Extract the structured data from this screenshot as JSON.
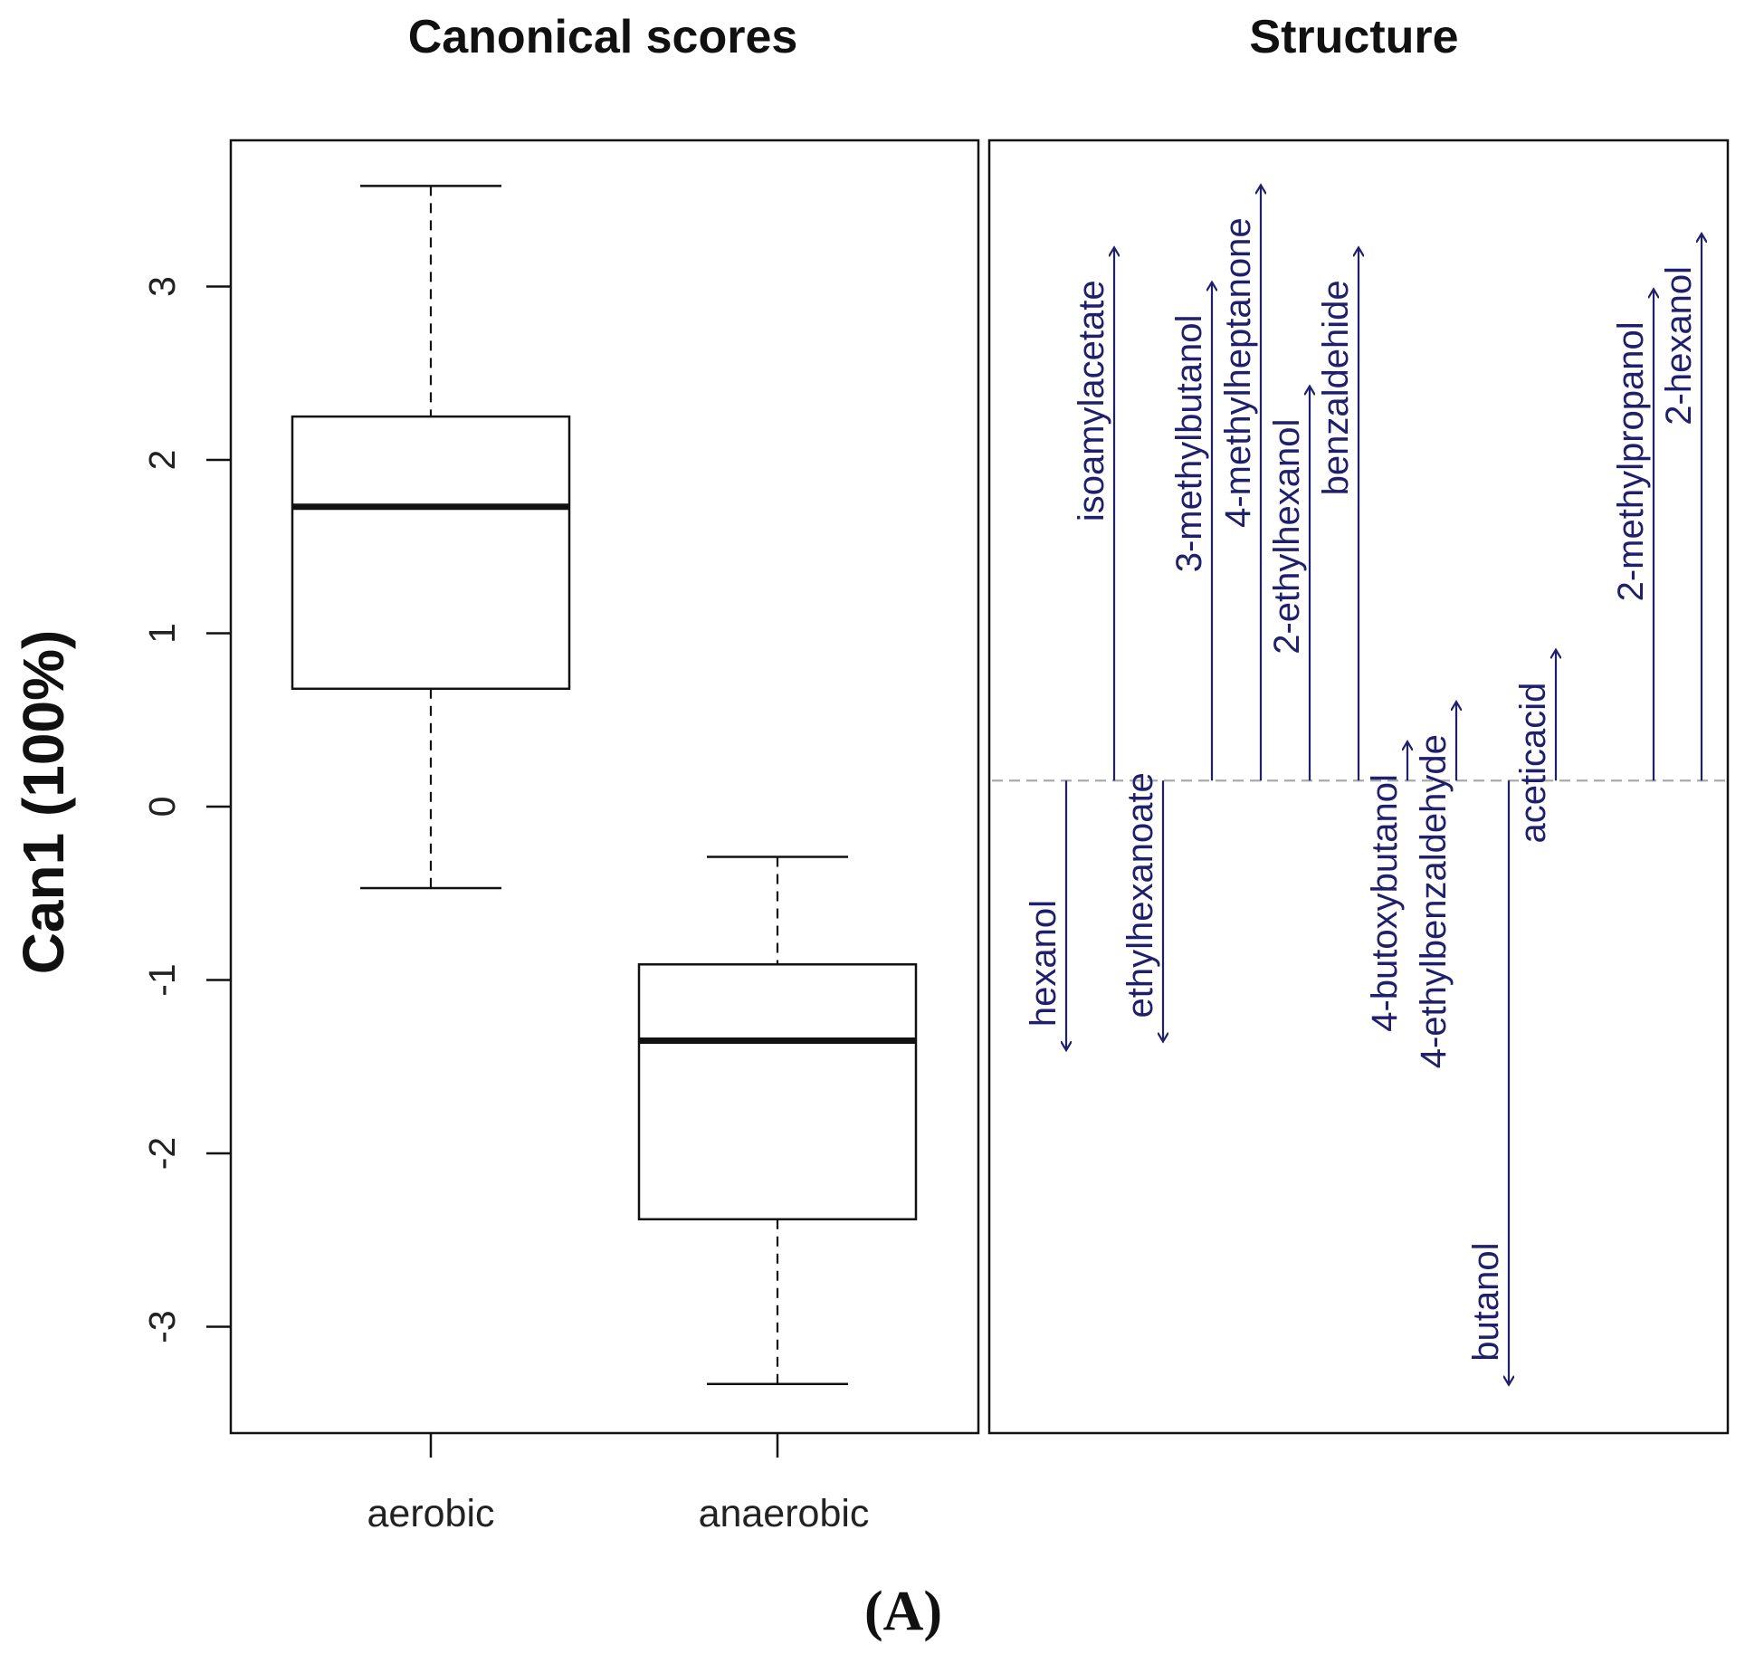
{
  "chart_data": [
    {
      "type": "box",
      "title": "Canonical scores",
      "ylabel": "Can1 (100%)",
      "xlabel": "",
      "ylim": [
        -3.6,
        3.9
      ],
      "yticks": [
        "3",
        "2",
        "1",
        "0",
        "-1",
        "-2",
        "-3"
      ],
      "categories": [
        "aerobic",
        "anaerobic"
      ],
      "boxes": [
        {
          "name": "aerobic",
          "min": -0.47,
          "q1": 0.68,
          "median": 1.73,
          "q3": 2.25,
          "max": 3.58
        },
        {
          "name": "anaerobic",
          "min": -3.33,
          "q1": -2.38,
          "median": -1.35,
          "q3": -0.91,
          "max": -0.29
        }
      ]
    },
    {
      "type": "structure",
      "title": "Structure",
      "baseline": 0.15,
      "variables": [
        {
          "name": "hexanol",
          "value": -1.4
        },
        {
          "name": "isoamylacetate",
          "value": 3.22
        },
        {
          "name": "ethylhexanoate",
          "value": -1.35
        },
        {
          "name": "3-methylbutanol",
          "value": 3.02
        },
        {
          "name": "4-methylheptanone",
          "value": 3.58
        },
        {
          "name": "2-ethylhexanol",
          "value": 2.42
        },
        {
          "name": "benzaldehide",
          "value": 3.22
        },
        {
          "name": "4-butoxybutanol",
          "value": 0.37
        },
        {
          "name": "4-ethylbenzaldehyde",
          "value": 0.6
        },
        {
          "name": "butanol",
          "value": -3.33
        },
        {
          "name": "aceticacid",
          "value": 0.9
        },
        {
          "name": "2-methylpropanol",
          "value": 2.98
        },
        {
          "name": "2-hexanol",
          "value": 3.3
        }
      ]
    }
  ],
  "figure": {
    "panel_label": "(A)",
    "arrow_color": "#1f1f6b",
    "axis_color": "#111111",
    "baseline_color": "#aaaaaa"
  }
}
